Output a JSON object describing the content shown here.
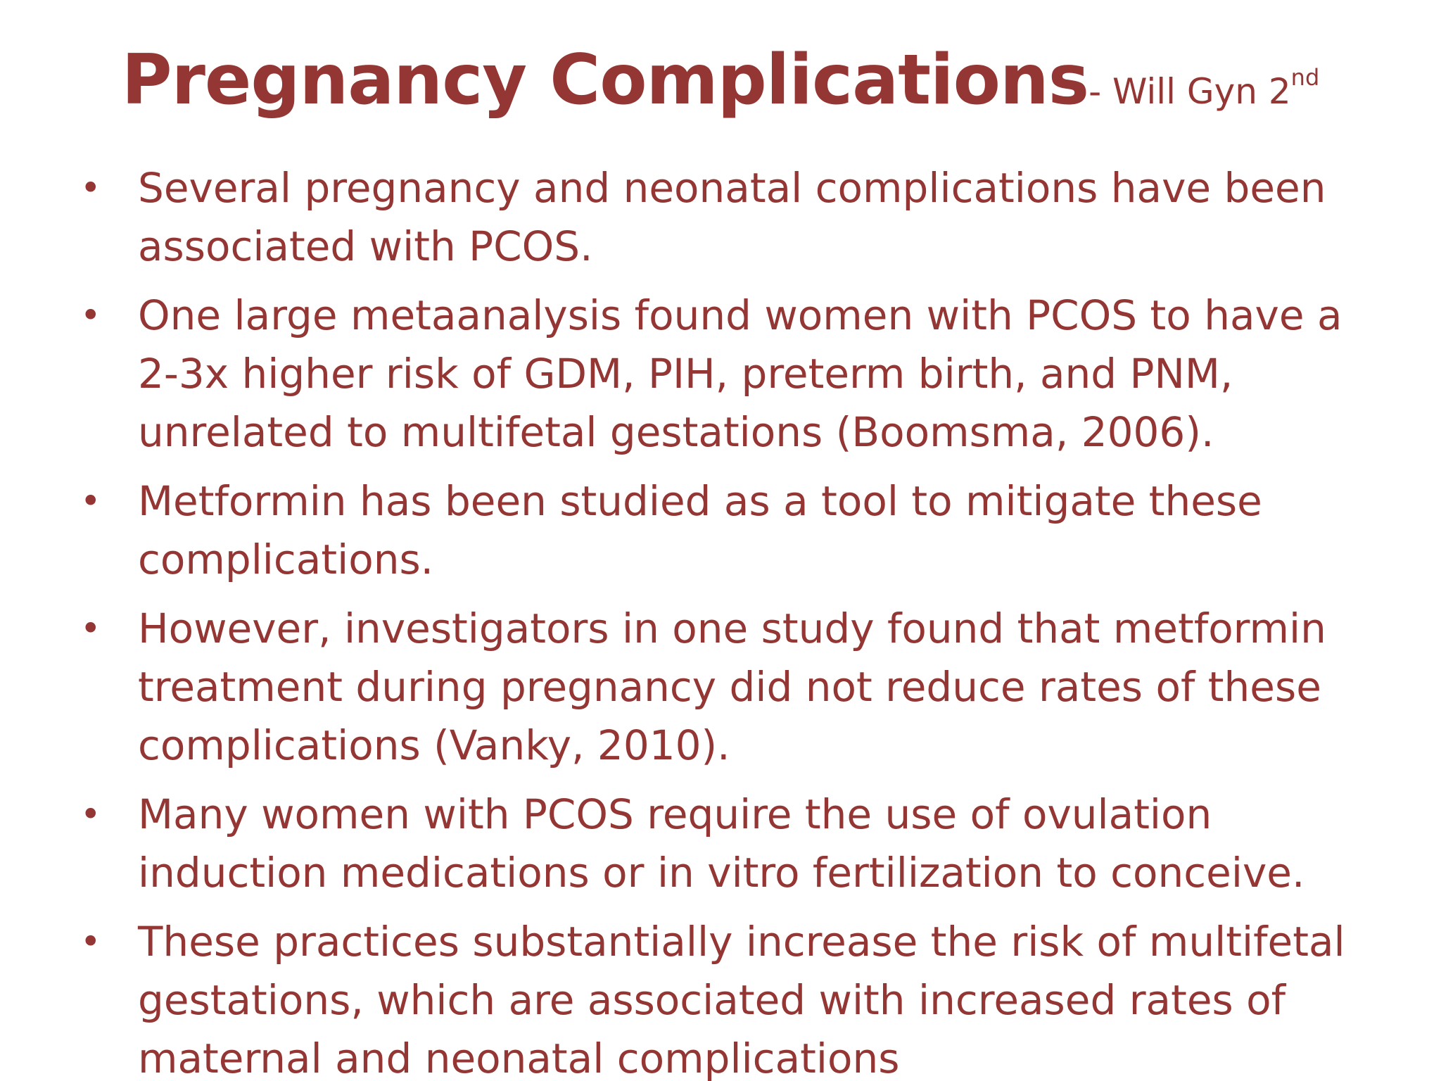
{
  "slide": {
    "title": "Pregnancy Complications",
    "title_suffix": "- Will Gyn 2",
    "title_suffix_sup": "nd",
    "bullet_glyph": "•",
    "bullets": [
      "Several pregnancy and neonatal complications have been associated with PCOS.",
      "One large metaanalysis found women with PCOS to have a 2-3x higher risk of GDM, PIH, preterm birth, and PNM, unrelated to multifetal gestations (Boomsma, 2006).",
      "Metformin has been studied as a tool to mitigate these complications.",
      "However, investigators in one study found that metformin treatment during pregnancy did not reduce rates of these complications (Vanky, 2010).",
      "Many women with PCOS require the use of ovulation induction medications or in vitro fertilization to conceive.",
      "These practices substantially increase the risk of multifetal gestations, which are associated with increased rates of maternal and neonatal complications"
    ],
    "colors": {
      "text": "#943634",
      "background": "#ffffff"
    }
  }
}
